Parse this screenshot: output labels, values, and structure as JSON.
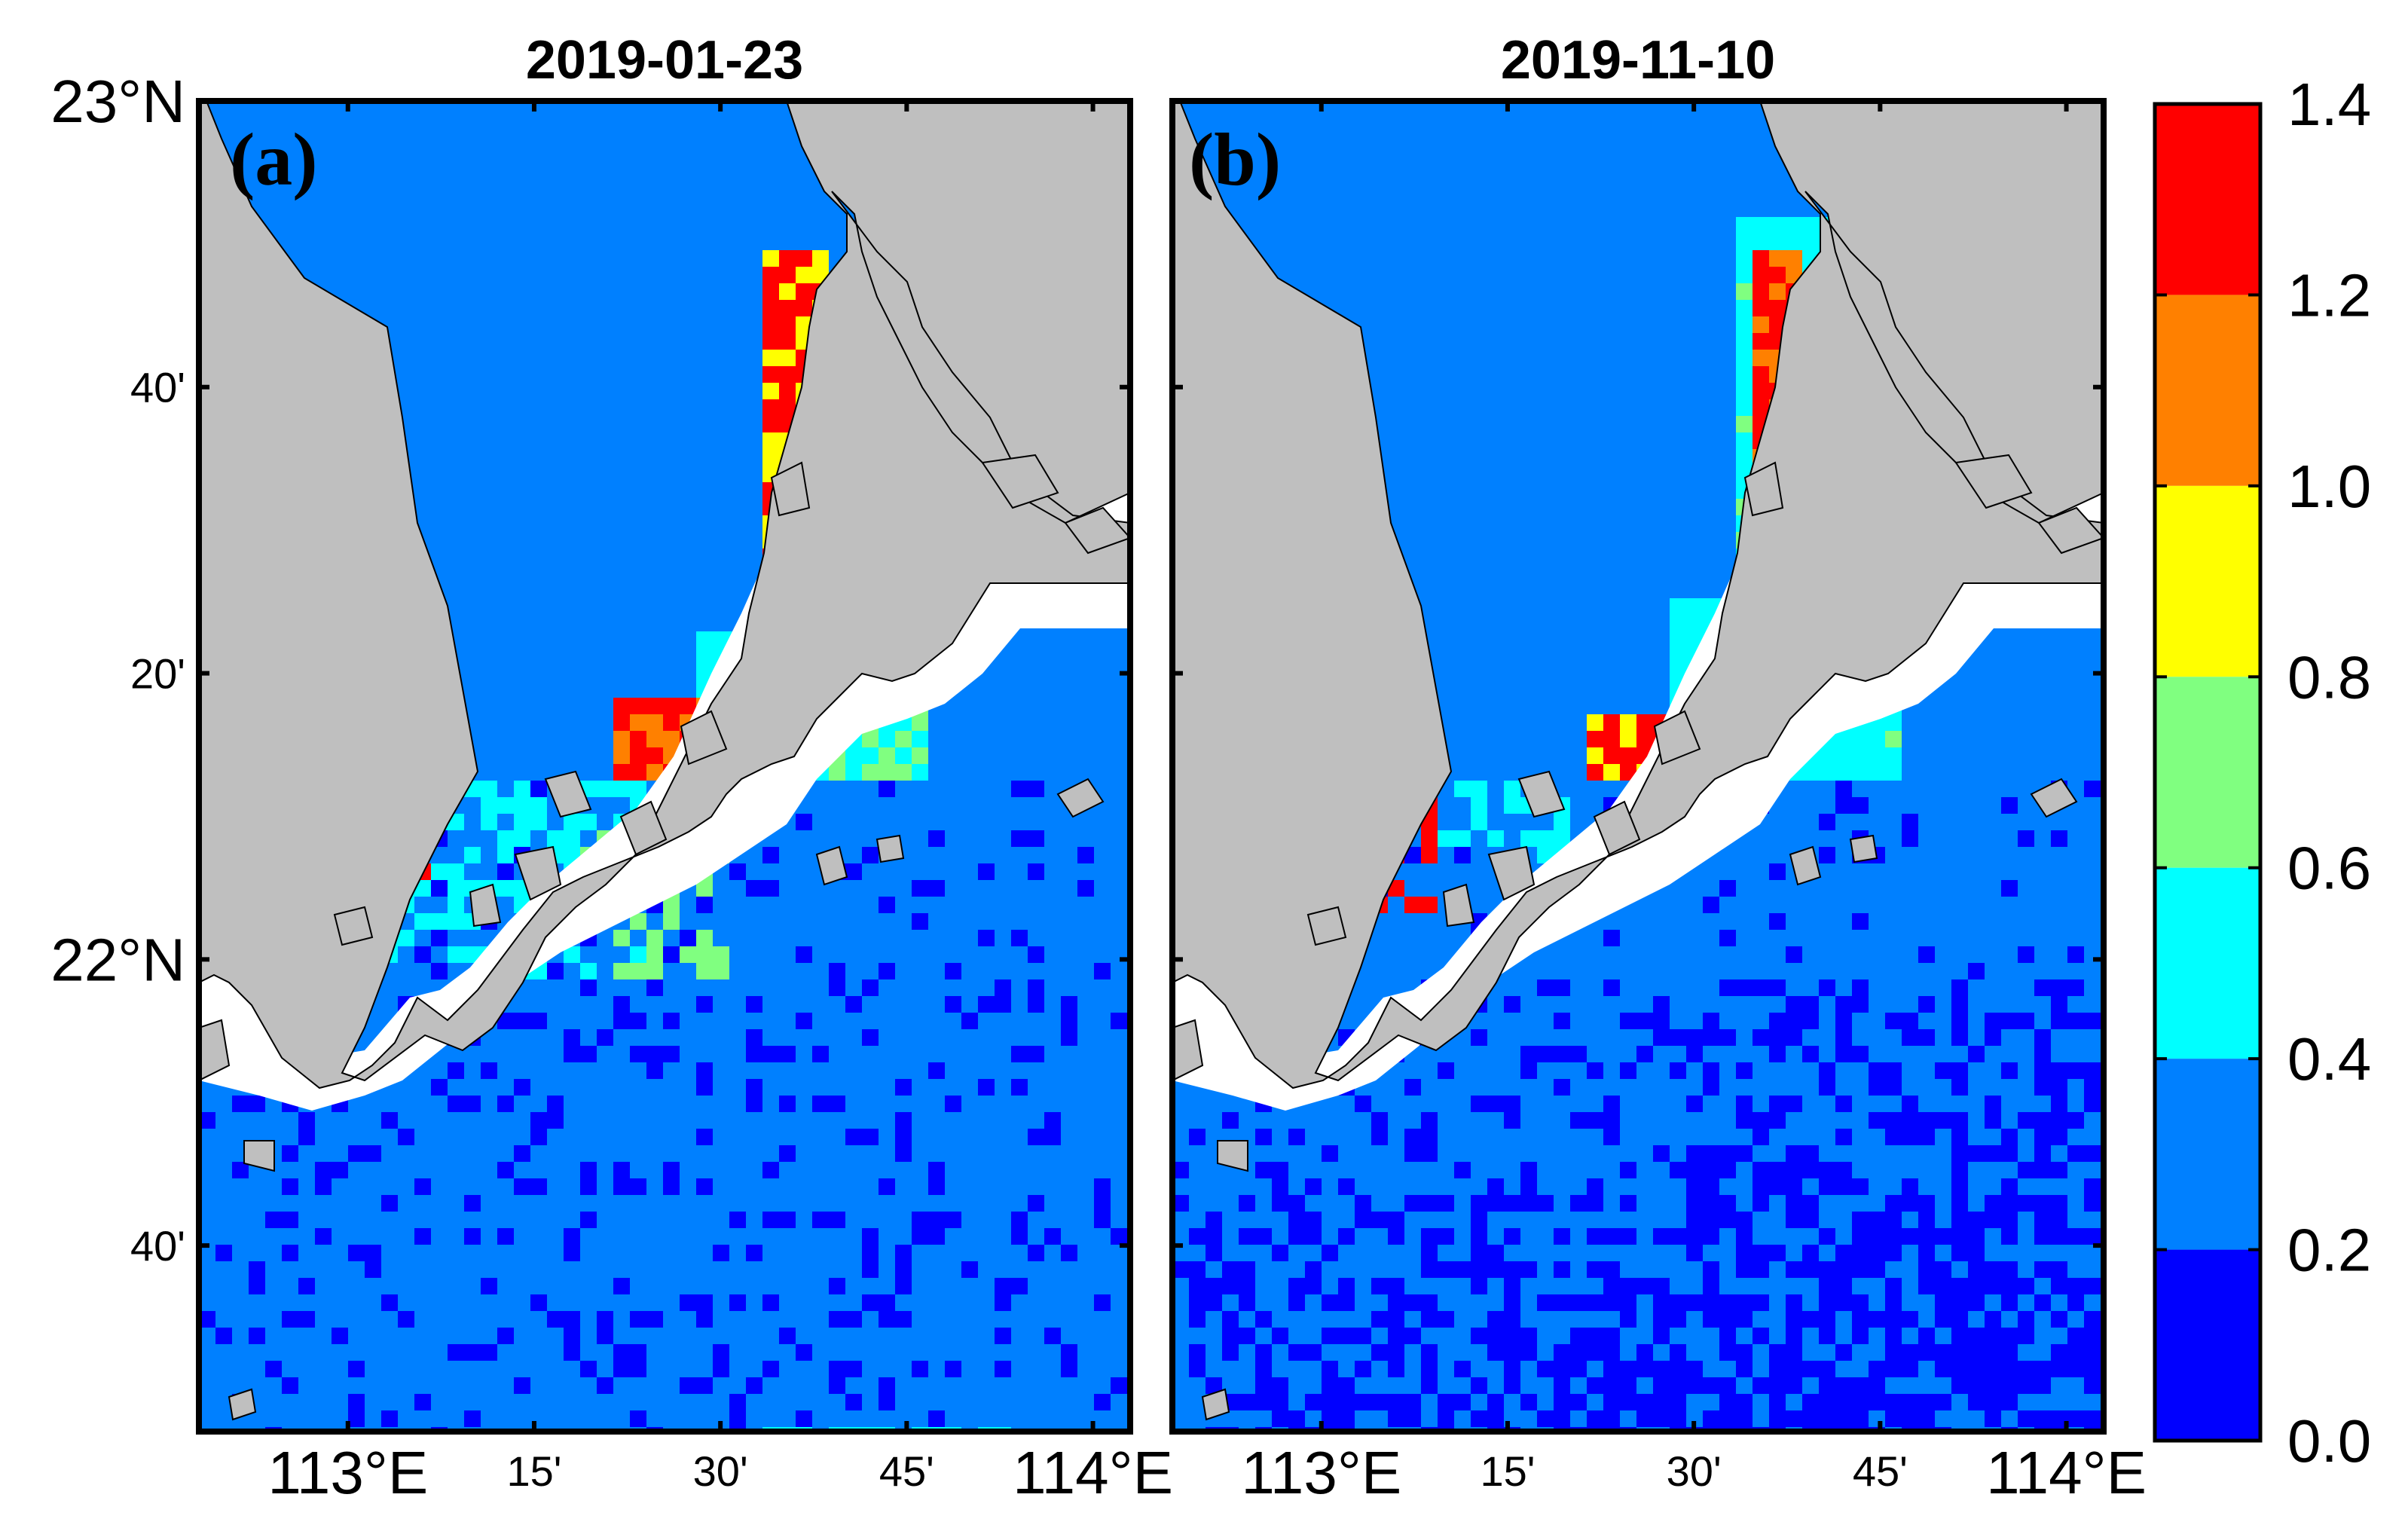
{
  "figure": {
    "panels": [
      {
        "id": "a",
        "label": "(a)",
        "title": "2019-01-23",
        "y_ticks": [
          {
            "lat": 23.0,
            "label": "23°N",
            "size": "big"
          },
          {
            "lat": 22.6667,
            "label": "40'",
            "size": "small"
          },
          {
            "lat": 22.3333,
            "label": "20'",
            "size": "small"
          },
          {
            "lat": 22.0,
            "label": "22°N",
            "size": "big"
          },
          {
            "lat": 21.6667,
            "label": "40'",
            "size": "small"
          }
        ],
        "x_ticks": [
          {
            "lon": 113.0,
            "label": "113°E",
            "size": "big"
          },
          {
            "lon": 113.25,
            "label": "15'",
            "size": "small"
          },
          {
            "lon": 113.5,
            "label": "30'",
            "size": "small"
          },
          {
            "lon": 113.75,
            "label": "45'",
            "size": "small"
          },
          {
            "lon": 114.0,
            "label": "114°E",
            "size": "big"
          }
        ]
      },
      {
        "id": "b",
        "label": "(b)",
        "title": "2019-11-10",
        "y_ticks": [
          {
            "lat": 23.0,
            "label": "",
            "size": "big"
          },
          {
            "lat": 22.6667,
            "label": "",
            "size": "small"
          },
          {
            "lat": 22.3333,
            "label": "",
            "size": "small"
          },
          {
            "lat": 22.0,
            "label": "",
            "size": "big"
          },
          {
            "lat": 21.6667,
            "label": "",
            "size": "small"
          }
        ],
        "x_ticks": [
          {
            "lon": 113.0,
            "label": "113°E",
            "size": "big"
          },
          {
            "lon": 113.25,
            "label": "15'",
            "size": "small"
          },
          {
            "lon": 113.5,
            "label": "30'",
            "size": "small"
          },
          {
            "lon": 113.75,
            "label": "45'",
            "size": "small"
          },
          {
            "lon": 114.0,
            "label": "114°E",
            "size": "big"
          }
        ]
      }
    ],
    "extent": {
      "lon_min": 112.8,
      "lon_max": 114.05,
      "lat_min": 21.45,
      "lat_max": 23.0
    },
    "colorbar": {
      "labels": [
        "1.4",
        "1.2",
        "1.0",
        "0.8",
        "0.6",
        "0.4",
        "0.2",
        "0.0"
      ],
      "values": [
        1.4,
        1.2,
        1.0,
        0.8,
        0.6,
        0.4,
        0.2,
        0.0
      ],
      "colors": [
        "#ff0000",
        "#ff8000",
        "#ffff00",
        "#80ff80",
        "#00ffff",
        "#0080ff",
        "#0000ff"
      ]
    },
    "land_color": "#bfbfbf",
    "no_data_color": "#ffffff"
  }
}
